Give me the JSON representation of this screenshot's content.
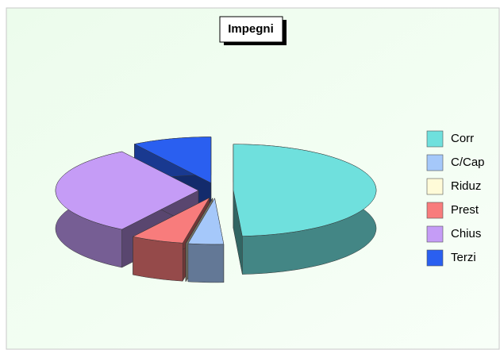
{
  "chart_data": {
    "type": "pie3d",
    "title": "Impegni",
    "categories": [
      "Corr",
      "C/Cap",
      "Riduz",
      "Prest",
      "Chius",
      "Terzi"
    ],
    "values": [
      49,
      4,
      0,
      6,
      32,
      9
    ],
    "colors": [
      "#6fe0dd",
      "#a5c8fa",
      "#fffbd8",
      "#f87c7c",
      "#c59cf6",
      "#2a5ff0"
    ],
    "legend": "right"
  }
}
